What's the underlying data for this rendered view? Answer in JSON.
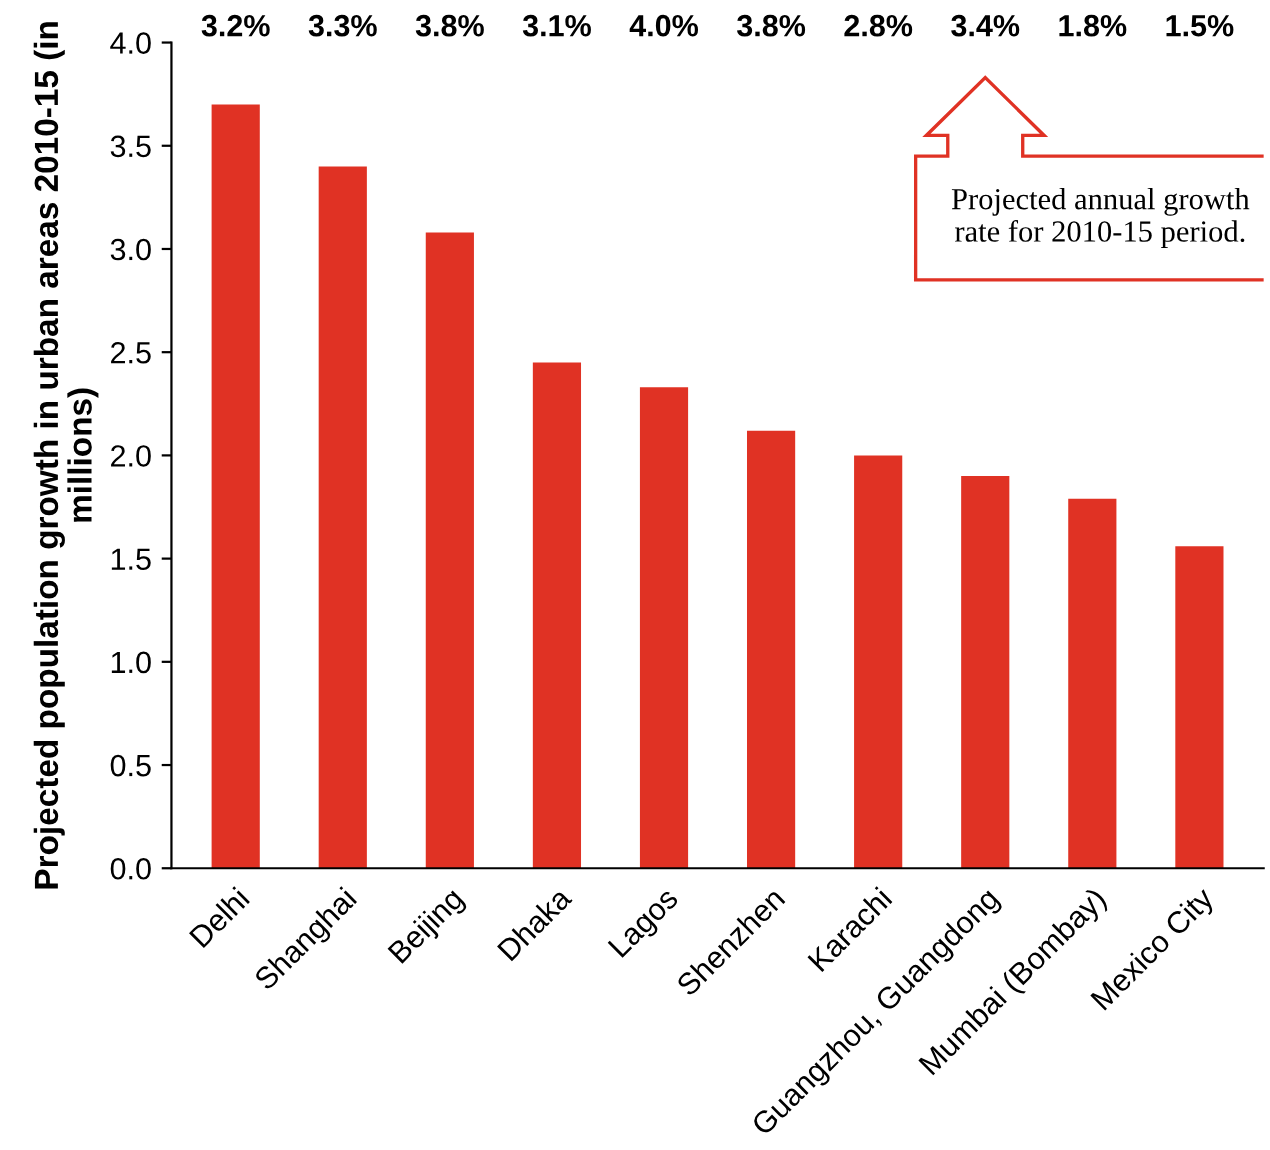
{
  "chart_data": {
    "type": "bar",
    "ylabel": "Projected population growth in urban areas 2010-15 (in\nmillions)",
    "categories": [
      "Delhi",
      "Shanghai",
      "Beijing",
      "Dhaka",
      "Lagos",
      "Shenzhen",
      "Karachi",
      "Guangzhou, Guangdong",
      "Mumbai (Bombay)",
      "Mexico City"
    ],
    "values": [
      3.7,
      3.4,
      3.08,
      2.45,
      2.33,
      2.12,
      2.0,
      1.9,
      1.79,
      1.56
    ],
    "color": "#e03224",
    "ylim": [
      0,
      4.0
    ],
    "yticks": [
      {
        "value": 0,
        "label": "0.0"
      },
      {
        "value": 0.5,
        "label": "0.5"
      },
      {
        "value": 1.0,
        "label": "1.0"
      },
      {
        "value": 1.5,
        "label": "1.5"
      },
      {
        "value": 2.0,
        "label": "2.0"
      },
      {
        "value": 2.5,
        "label": "2.5"
      },
      {
        "value": 3.0,
        "label": "3.0"
      },
      {
        "value": 3.5,
        "label": "3.5"
      },
      {
        "value": 4.0,
        "label": "4.0"
      }
    ],
    "grid": false,
    "legend": false,
    "annotations": [
      "3.2%",
      "3.3%",
      "3.8%",
      "3.1%",
      "4.0%",
      "3.8%",
      "2.8%",
      "3.4%",
      "1.8%",
      "1.5%",
      "Projected annual growth rate for 2010-15 period."
    ]
  }
}
